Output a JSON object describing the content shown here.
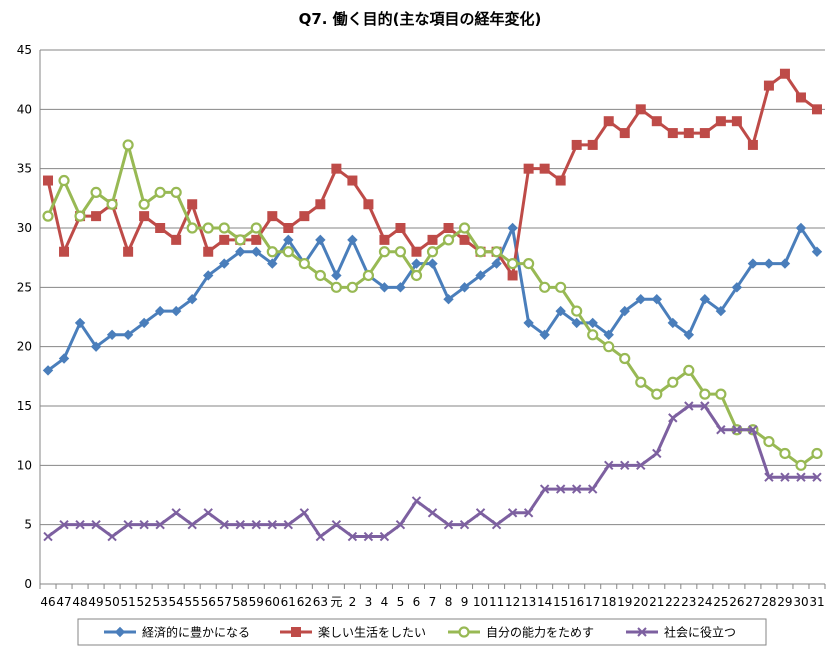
{
  "chart_data": {
    "type": "line",
    "title": "Q7. 働く目的(主な項目の経年変化)",
    "xlabel": "",
    "ylabel": "",
    "ylim": [
      0,
      45
    ],
    "yticks": [
      0,
      5,
      10,
      15,
      20,
      25,
      30,
      35,
      40,
      45
    ],
    "grid": true,
    "legend_position": "bottom",
    "categories": [
      "46",
      "47",
      "48",
      "49",
      "50",
      "51",
      "52",
      "53",
      "54",
      "55",
      "56",
      "57",
      "58",
      "59",
      "60",
      "61",
      "62",
      "63",
      "元",
      "2",
      "3",
      "4",
      "5",
      "6",
      "7",
      "8",
      "9",
      "10",
      "11",
      "12",
      "13",
      "14",
      "15",
      "16",
      "17",
      "18",
      "19",
      "20",
      "21",
      "22",
      "23",
      "24",
      "25",
      "26",
      "27",
      "28",
      "29",
      "30",
      "31"
    ],
    "series": [
      {
        "name": "経済的に豊かになる",
        "color": "#4a7ebb",
        "marker": "diamond",
        "values": [
          18,
          19,
          22,
          20,
          21,
          21,
          22,
          23,
          23,
          24,
          26,
          27,
          28,
          28,
          27,
          29,
          27,
          29,
          26,
          29,
          26,
          25,
          25,
          27,
          27,
          24,
          25,
          26,
          27,
          30,
          22,
          21,
          23,
          22,
          22,
          21,
          23,
          24,
          24,
          22,
          21,
          24,
          23,
          25,
          27,
          27,
          27,
          30,
          28
        ]
      },
      {
        "name": "楽しい生活をしたい",
        "color": "#be4b48",
        "marker": "square",
        "values": [
          34,
          28,
          31,
          31,
          32,
          28,
          31,
          30,
          29,
          32,
          28,
          29,
          29,
          29,
          31,
          30,
          31,
          32,
          35,
          34,
          32,
          29,
          30,
          28,
          29,
          30,
          29,
          28,
          28,
          26,
          35,
          35,
          34,
          37,
          37,
          39,
          38,
          40,
          39,
          38,
          38,
          38,
          39,
          39,
          37,
          42,
          43,
          41,
          40
        ]
      },
      {
        "name": "自分の能力をためす",
        "color": "#98b954",
        "marker": "circle",
        "values": [
          31,
          34,
          31,
          33,
          32,
          37,
          32,
          33,
          33,
          30,
          30,
          30,
          29,
          30,
          28,
          28,
          27,
          26,
          25,
          25,
          26,
          28,
          28,
          26,
          28,
          29,
          30,
          28,
          28,
          27,
          27,
          25,
          25,
          23,
          21,
          20,
          19,
          17,
          16,
          17,
          18,
          16,
          16,
          13,
          13,
          12,
          11,
          10,
          11
        ]
      },
      {
        "name": "社会に役立つ",
        "color": "#7d60a0",
        "marker": "x",
        "values": [
          4,
          5,
          5,
          5,
          4,
          5,
          5,
          5,
          6,
          5,
          6,
          5,
          5,
          5,
          5,
          5,
          6,
          4,
          5,
          4,
          4,
          4,
          5,
          7,
          6,
          5,
          5,
          6,
          5,
          6,
          6,
          8,
          8,
          8,
          8,
          10,
          10,
          10,
          11,
          14,
          15,
          15,
          13,
          13,
          13,
          9,
          9,
          9,
          9
        ]
      }
    ]
  }
}
